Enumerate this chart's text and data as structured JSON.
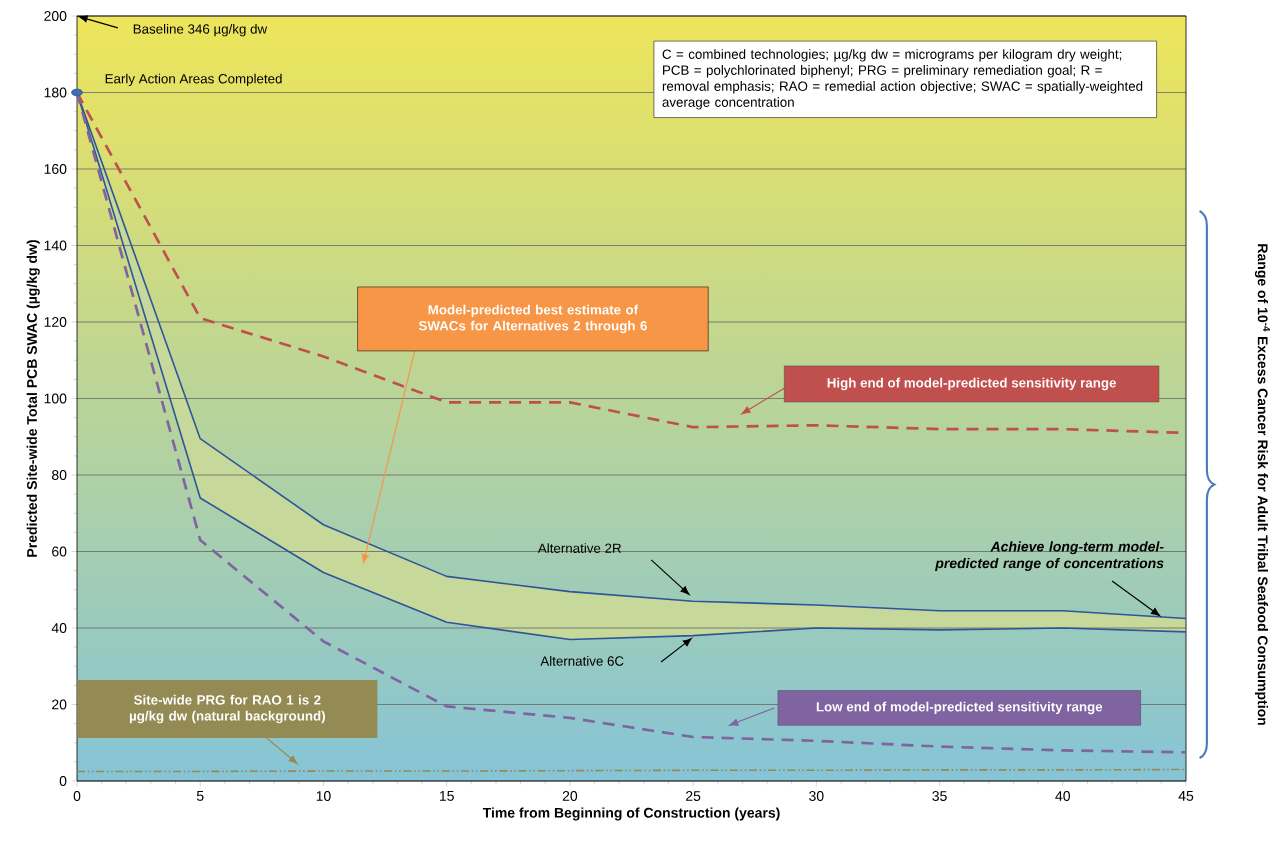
{
  "chart_data": {
    "type": "line",
    "xlabel": "Time from Beginning of Construction (years)",
    "ylabel": "Predicted Site-wide Total PCB SWAC (µg/kg dw)",
    "x": [
      0,
      5,
      10,
      15,
      20,
      25,
      30,
      35,
      40,
      45
    ],
    "series": [
      {
        "color": "#2f5597",
        "line_style": "solid",
        "values": [
          180,
          89.5,
          67,
          53.5,
          49.5,
          47,
          46,
          44.5,
          44.5,
          42.5
        ]
      },
      {
        "color": "#2f5597",
        "line_style": "solid",
        "values": [
          180,
          74,
          54.5,
          41.5,
          37,
          38,
          40,
          39.5,
          40,
          39
        ]
      },
      {
        "color": "#c0504d",
        "line_style": "dashed",
        "values": [
          180,
          121,
          111,
          99,
          99,
          92.5,
          93,
          92,
          92,
          91
        ]
      },
      {
        "color": "#8064a2",
        "line_style": "dashed",
        "values": [
          180,
          63,
          36.5,
          19.5,
          16.5,
          11.5,
          10.5,
          9,
          8,
          7.5
        ]
      },
      {
        "color": "#948a54",
        "line_style": "dashdotted",
        "values": [
          2.5,
          2.5,
          2.6,
          2.6,
          2.7,
          2.8,
          2.8,
          2.9,
          2.9,
          3
        ]
      },
      {
        "type": "scatter",
        "color": "#3d6fb0",
        "marker": "circle",
        "values": [
          180,
          null,
          null,
          null,
          null,
          null,
          null,
          null,
          null,
          null
        ]
      }
    ],
    "xlim": [
      0,
      45
    ],
    "ylim": [
      0,
      200
    ],
    "xticks": [
      0,
      5,
      10,
      15,
      20,
      25,
      30,
      35,
      40,
      45
    ],
    "yticks": [
      0,
      20,
      40,
      60,
      80,
      100,
      120,
      140,
      160,
      180,
      200
    ],
    "grid": "y",
    "annotations": [
      "Baseline  346 µg/kg dw",
      {
        "text": "Early Action Areas Completed",
        "x": 0,
        "y": 180
      },
      "C = combined technologies; µg/kg dw = micrograms per kilogram dry weight; PCB = polychlorinated biphenyl; PRG = preliminary remediation goal; R = removal emphasis; RAO = remedial action objective; SWAC = spatially-weighted average concentration",
      "Model-predicted best estimate of SWACs for Alternatives 2 through 6",
      "High end of model-predicted sensitivity range",
      "Alternative 2R",
      "Alternative 6C",
      "Achieve long-term model-predicted range of concentrations",
      "Low end of model-predicted sensitivity range",
      "Site-wide PRG for RAO 1 is 2 µg/kg dw (natural background)",
      "Range of 10$^{-4}$ Excess Cancer Risk for Adult Tribal Seafood Consumption"
    ]
  }
}
